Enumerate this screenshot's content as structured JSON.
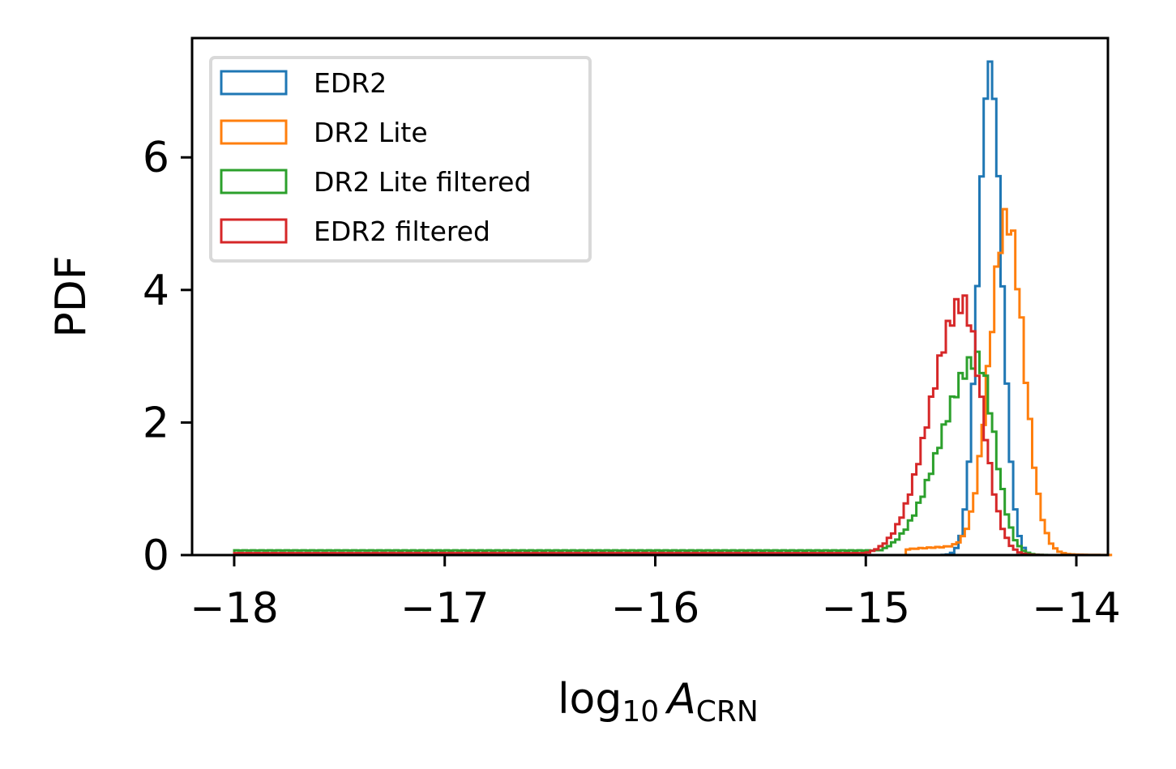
{
  "chart_data": {
    "type": "histogram",
    "histtype": "step",
    "xlabel": {
      "main": "log",
      "sub": "10",
      "var": "A",
      "varsub": "CRN"
    },
    "ylabel": "PDF",
    "xlim": [
      -18.2,
      -13.85
    ],
    "ylim": [
      0,
      7.8
    ],
    "xticks": [
      -18,
      -17,
      -16,
      -15,
      -14
    ],
    "xtick_labels": [
      "−18",
      "−17",
      "−16",
      "−15",
      "−14"
    ],
    "yticks": [
      0,
      2,
      4,
      6
    ],
    "ytick_labels": [
      "0",
      "2",
      "4",
      "6"
    ],
    "grid": false,
    "legend_position": "upper-left",
    "series": [
      {
        "name": "EDR2",
        "color": "#1f77b4",
        "dist": "gaussian",
        "mean": -14.41,
        "sd": 0.055,
        "peak": 7.4,
        "tail": 0.0
      },
      {
        "name": "DR2 Lite",
        "color": "#ff7f0e",
        "dist": "gaussian",
        "mean": -14.33,
        "sd": 0.08,
        "peak": 5.0,
        "tail": 0.0,
        "shoulder": {
          "mean": -14.6,
          "sd": 0.25,
          "height": 0.12
        }
      },
      {
        "name": "DR2 Lite filtered",
        "color": "#2ca02c",
        "dist": "skew",
        "mean": -14.47,
        "sd_left": 0.17,
        "sd_right": 0.08,
        "peak": 2.95,
        "tail": 0.07
      },
      {
        "name": "EDR2 filtered",
        "color": "#d62728",
        "dist": "skew",
        "mean": -14.54,
        "sd_left": 0.15,
        "sd_right": 0.09,
        "peak": 3.8,
        "tail": 0.03
      }
    ]
  }
}
